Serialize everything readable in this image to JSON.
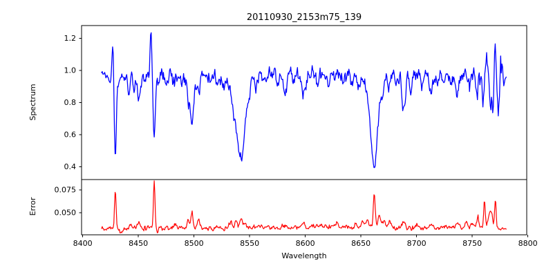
{
  "chart_data": {
    "type": "line",
    "title": "20110930_2153m75_139",
    "xlabel": "Wavelength",
    "grid": false,
    "legend": "none",
    "xlim": [
      8399,
      8799
    ],
    "x_data_range": [
      8417,
      8781
    ],
    "x_ticks": [
      8400,
      8450,
      8500,
      8550,
      8600,
      8650,
      8700,
      8750,
      8800
    ],
    "x_tick_labels": [
      "8400",
      "8450",
      "8500",
      "8550",
      "8600",
      "8650",
      "8700",
      "8750",
      "8800"
    ],
    "subplots": [
      {
        "name": "spectrum",
        "ylabel": "Spectrum",
        "line_color": "#0000ff",
        "ylim": [
          0.32,
          1.28
        ],
        "y_ticks": [
          0.4,
          0.6,
          0.8,
          1.0,
          1.2
        ],
        "y_tick_labels": [
          "0.4",
          "0.6",
          "0.8",
          "1.0",
          "1.2"
        ],
        "continuum_level": 0.975,
        "noise_sigma": 0.021,
        "noise_sigma_start": 0.013,
        "noise_ramp_region": [
          8740,
          8777
        ],
        "noise_sigma_end_ramp": 0.051,
        "noise_sigma_tail": 0.01,
        "absorption_lines": [
          {
            "center": 8424.5,
            "depth": 0.06,
            "sigma": 1.2
          },
          {
            "center": 8429.3,
            "depth": 0.55,
            "sigma": 1.0
          },
          {
            "center": 8433.5,
            "depth": 0.05,
            "sigma": 0.9
          },
          {
            "center": 8441.5,
            "depth": 0.12,
            "sigma": 1.1
          },
          {
            "center": 8446.0,
            "depth": 0.07,
            "sigma": 0.9
          },
          {
            "center": 8450.5,
            "depth": 0.16,
            "sigma": 1.4
          },
          {
            "center": 8456.0,
            "depth": 0.06,
            "sigma": 0.9
          },
          {
            "center": 8464.3,
            "depth": 0.42,
            "sigma": 1.0
          },
          {
            "center": 8468.5,
            "depth": 0.06,
            "sigma": 0.9
          },
          {
            "center": 8475.0,
            "depth": 0.09,
            "sigma": 1.1
          },
          {
            "center": 8482.0,
            "depth": 0.05,
            "sigma": 0.9
          },
          {
            "center": 8489.0,
            "depth": 0.06,
            "sigma": 0.9
          },
          {
            "center": 8495.0,
            "depth": 0.15,
            "sigma": 1.2
          },
          {
            "center": 8498.3,
            "depth": 0.32,
            "sigma": 1.5
          },
          {
            "center": 8504.0,
            "depth": 0.13,
            "sigma": 1.4
          },
          {
            "center": 8514.0,
            "depth": 0.06,
            "sigma": 1.1
          },
          {
            "center": 8521.0,
            "depth": 0.05,
            "sigma": 1.0
          },
          {
            "center": 8527.0,
            "depth": 0.08,
            "sigma": 1.3
          },
          {
            "center": 8535.0,
            "depth": 0.13,
            "sigma": 2.2
          },
          {
            "center": 8541.8,
            "depth": 0.47,
            "sigma": 3.4
          },
          {
            "center": 8541.0,
            "depth": 0.1,
            "sigma": 7.0
          },
          {
            "center": 8543.5,
            "depth": 0.08,
            "sigma": 1.2
          },
          {
            "center": 8548.5,
            "depth": 0.1,
            "sigma": 1.4
          },
          {
            "center": 8556.0,
            "depth": 0.07,
            "sigma": 1.1
          },
          {
            "center": 8565.0,
            "depth": 0.05,
            "sigma": 1.0
          },
          {
            "center": 8575.0,
            "depth": 0.05,
            "sigma": 1.0
          },
          {
            "center": 8582.0,
            "depth": 0.11,
            "sigma": 1.4
          },
          {
            "center": 8590.0,
            "depth": 0.05,
            "sigma": 1.0
          },
          {
            "center": 8598.5,
            "depth": 0.13,
            "sigma": 1.6
          },
          {
            "center": 8611.0,
            "depth": 0.06,
            "sigma": 1.1
          },
          {
            "center": 8621.0,
            "depth": 0.07,
            "sigma": 1.1
          },
          {
            "center": 8634.0,
            "depth": 0.06,
            "sigma": 1.0
          },
          {
            "center": 8642.0,
            "depth": 0.05,
            "sigma": 1.0
          },
          {
            "center": 8648.0,
            "depth": 0.08,
            "sigma": 1.3
          },
          {
            "center": 8661.8,
            "depth": 0.55,
            "sigma": 2.8
          },
          {
            "center": 8662.0,
            "depth": 0.1,
            "sigma": 6.0
          },
          {
            "center": 8669.0,
            "depth": 0.1,
            "sigma": 1.2
          },
          {
            "center": 8675.0,
            "depth": 0.08,
            "sigma": 1.0
          },
          {
            "center": 8682.0,
            "depth": 0.06,
            "sigma": 1.0
          },
          {
            "center": 8688.5,
            "depth": 0.22,
            "sigma": 1.5
          },
          {
            "center": 8695.0,
            "depth": 0.1,
            "sigma": 1.1
          },
          {
            "center": 8705.0,
            "depth": 0.08,
            "sigma": 1.1
          },
          {
            "center": 8713.0,
            "depth": 0.12,
            "sigma": 1.3
          },
          {
            "center": 8719.0,
            "depth": 0.06,
            "sigma": 1.0
          },
          {
            "center": 8725.0,
            "depth": 0.09,
            "sigma": 1.1
          },
          {
            "center": 8731.0,
            "depth": 0.07,
            "sigma": 1.0
          },
          {
            "center": 8736.5,
            "depth": 0.13,
            "sigma": 1.4
          },
          {
            "center": 8747.0,
            "depth": 0.1,
            "sigma": 1.1
          },
          {
            "center": 8754.0,
            "depth": 0.12,
            "sigma": 1.0
          },
          {
            "center": 8760.0,
            "depth": 0.16,
            "sigma": 1.0
          },
          {
            "center": 8766.5,
            "depth": 0.2,
            "sigma": 1.0
          },
          {
            "center": 8769.0,
            "depth": 0.18,
            "sigma": 0.8
          },
          {
            "center": 8773.5,
            "depth": 0.22,
            "sigma": 0.9
          },
          {
            "center": 8778.5,
            "depth": 0.08,
            "sigma": 0.8
          }
        ],
        "emission_spikes": [
          {
            "center": 8427.2,
            "height": 0.25,
            "sigma": 0.8
          },
          {
            "center": 8461.3,
            "height": 0.26,
            "sigma": 0.8
          },
          {
            "center": 8763.0,
            "height": 0.1,
            "sigma": 0.8
          },
          {
            "center": 8770.7,
            "height": 0.22,
            "sigma": 0.8
          },
          {
            "center": 8776.3,
            "height": 0.12,
            "sigma": 0.8
          }
        ]
      },
      {
        "name": "error",
        "ylabel": "Error",
        "line_color": "#ff0000",
        "ylim": [
          0.0258,
          0.0864
        ],
        "y_ticks": [
          0.05,
          0.075
        ],
        "y_tick_labels": [
          "0.050",
          "0.075"
        ],
        "baseline_level": 0.0335,
        "baseline_tail": 0.0325,
        "noise_sigma": 0.0012,
        "peaks": [
          {
            "center": 8429.3,
            "height": 0.0415,
            "sigma": 0.7
          },
          {
            "center": 8434.0,
            "height": -0.004,
            "sigma": 1.5
          },
          {
            "center": 8443.0,
            "height": 0.004,
            "sigma": 1.0
          },
          {
            "center": 8450.5,
            "height": 0.006,
            "sigma": 1.0
          },
          {
            "center": 8464.3,
            "height": 0.053,
            "sigma": 0.7
          },
          {
            "center": 8467.5,
            "height": -0.003,
            "sigma": 1.2
          },
          {
            "center": 8483.0,
            "height": 0.003,
            "sigma": 1.0
          },
          {
            "center": 8495.0,
            "height": 0.009,
            "sigma": 1.1
          },
          {
            "center": 8498.3,
            "height": 0.0165,
            "sigma": 0.9
          },
          {
            "center": 8504.0,
            "height": 0.008,
            "sigma": 1.2
          },
          {
            "center": 8533.0,
            "height": 0.006,
            "sigma": 1.4
          },
          {
            "center": 8538.0,
            "height": 0.008,
            "sigma": 1.1
          },
          {
            "center": 8542.5,
            "height": 0.01,
            "sigma": 1.1
          },
          {
            "center": 8546.0,
            "height": 0.006,
            "sigma": 1.0
          },
          {
            "center": 8560.0,
            "height": 0.002,
            "sigma": 1.5
          },
          {
            "center": 8580.0,
            "height": 0.002,
            "sigma": 1.5
          },
          {
            "center": 8598.0,
            "height": 0.004,
            "sigma": 1.5
          },
          {
            "center": 8618.0,
            "height": 0.002,
            "sigma": 10.0
          },
          {
            "center": 8628.0,
            "height": 0.003,
            "sigma": 2.0
          },
          {
            "center": 8645.0,
            "height": 0.003,
            "sigma": 1.5
          },
          {
            "center": 8652.0,
            "height": 0.007,
            "sigma": 1.4
          },
          {
            "center": 8656.0,
            "height": 0.011,
            "sigma": 1.1
          },
          {
            "center": 8662.0,
            "height": 0.0385,
            "sigma": 0.8
          },
          {
            "center": 8666.5,
            "height": 0.013,
            "sigma": 1.3
          },
          {
            "center": 8671.0,
            "height": 0.008,
            "sigma": 1.2
          },
          {
            "center": 8676.0,
            "height": 0.005,
            "sigma": 1.0
          },
          {
            "center": 8688.0,
            "height": 0.006,
            "sigma": 1.2
          },
          {
            "center": 8700.0,
            "height": 0.002,
            "sigma": 1.5
          },
          {
            "center": 8713.0,
            "height": 0.004,
            "sigma": 1.2
          },
          {
            "center": 8727.0,
            "height": 0.003,
            "sigma": 1.2
          },
          {
            "center": 8737.0,
            "height": 0.005,
            "sigma": 1.2
          },
          {
            "center": 8745.0,
            "height": 0.007,
            "sigma": 1.2
          },
          {
            "center": 8750.0,
            "height": 0.004,
            "sigma": 1.0
          },
          {
            "center": 8755.0,
            "height": 0.012,
            "sigma": 1.1
          },
          {
            "center": 8761.0,
            "height": 0.029,
            "sigma": 0.7
          },
          {
            "center": 8764.5,
            "height": 0.01,
            "sigma": 0.9
          },
          {
            "center": 8766.5,
            "height": 0.016,
            "sigma": 0.9
          },
          {
            "center": 8768.0,
            "height": 0.008,
            "sigma": 0.8
          },
          {
            "center": 8770.8,
            "height": 0.032,
            "sigma": 0.7
          }
        ]
      }
    ]
  }
}
